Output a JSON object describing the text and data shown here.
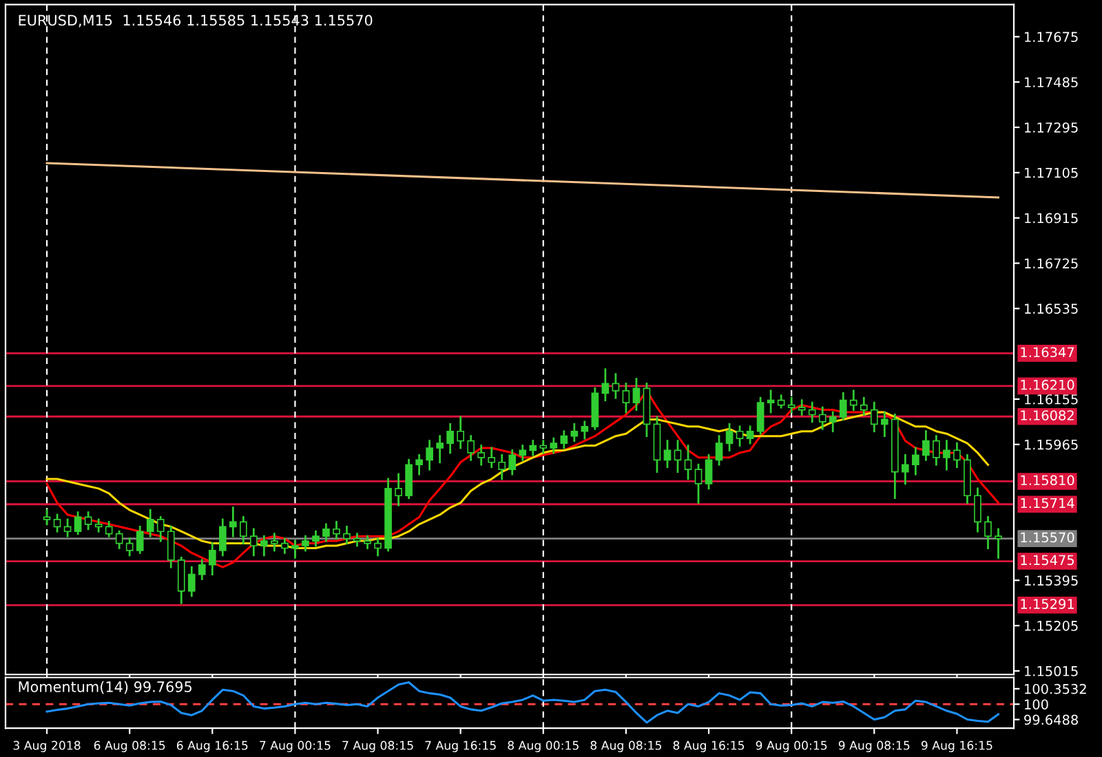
{
  "chart_data": [
    {
      "type": "candlestick",
      "title": "EURUSD,M15  1.15546 1.15585 1.15543 1.15570",
      "categories": [
        "3 Aug 2018",
        null,
        null,
        null,
        null,
        null,
        null,
        null,
        "6 Aug 08:15",
        null,
        null,
        null,
        null,
        null,
        null,
        null,
        "6 Aug 16:15",
        null,
        null,
        null,
        null,
        null,
        null,
        null,
        "7 Aug 00:15",
        null,
        null,
        null,
        null,
        null,
        null,
        null,
        "7 Aug 08:15",
        null,
        null,
        null,
        null,
        null,
        null,
        null,
        "7 Aug 16:15",
        null,
        null,
        null,
        null,
        null,
        null,
        null,
        "8 Aug 00:15",
        null,
        null,
        null,
        null,
        null,
        null,
        null,
        "8 Aug 08:15",
        null,
        null,
        null,
        null,
        null,
        null,
        null,
        "8 Aug 16:15",
        null,
        null,
        null,
        null,
        null,
        null,
        null,
        "9 Aug 00:15",
        null,
        null,
        null,
        null,
        null,
        null,
        null,
        "9 Aug 08:15",
        null,
        null,
        null,
        null,
        null,
        null,
        null,
        "9 Aug 16:15",
        null,
        null,
        null,
        null
      ],
      "color": "#32cd32",
      "ohlc": [
        [
          1.1566,
          1.1569,
          1.1563,
          1.1565
        ],
        [
          1.1565,
          1.1567,
          1.156,
          1.1562
        ],
        [
          1.1562,
          1.1565,
          1.1558,
          1.156
        ],
        [
          1.156,
          1.1568,
          1.1559,
          1.1566
        ],
        [
          1.1566,
          1.1568,
          1.1561,
          1.1563
        ],
        [
          1.1563,
          1.1565,
          1.156,
          1.1562
        ],
        [
          1.1562,
          1.1564,
          1.1558,
          1.1559
        ],
        [
          1.1559,
          1.156,
          1.1553,
          1.1555
        ],
        [
          1.1555,
          1.1557,
          1.155,
          1.1552
        ],
        [
          1.1552,
          1.1562,
          1.1551,
          1.156
        ],
        [
          1.156,
          1.1569,
          1.1558,
          1.1565
        ],
        [
          1.1565,
          1.1566,
          1.1556,
          1.156
        ],
        [
          1.156,
          1.1562,
          1.1545,
          1.1548
        ],
        [
          1.1548,
          1.1549,
          1.153,
          1.1535
        ],
        [
          1.1535,
          1.1545,
          1.1533,
          1.1542
        ],
        [
          1.1542,
          1.1548,
          1.154,
          1.1546
        ],
        [
          1.1546,
          1.1555,
          1.1542,
          1.1552
        ],
        [
          1.1552,
          1.1565,
          1.155,
          1.1562
        ],
        [
          1.1562,
          1.157,
          1.1558,
          1.1564
        ],
        [
          1.1564,
          1.1566,
          1.1555,
          1.1558
        ],
        [
          1.1558,
          1.1561,
          1.155,
          1.1554
        ],
        [
          1.1554,
          1.1558,
          1.155,
          1.1556
        ],
        [
          1.1556,
          1.1559,
          1.1552,
          1.1555
        ],
        [
          1.1555,
          1.1557,
          1.1551,
          1.1553
        ],
        [
          1.1553,
          1.1556,
          1.1549,
          1.1554
        ],
        [
          1.1554,
          1.1558,
          1.1552,
          1.1556
        ],
        [
          1.1556,
          1.156,
          1.1554,
          1.1558
        ],
        [
          1.1558,
          1.1563,
          1.1556,
          1.1561
        ],
        [
          1.1561,
          1.1564,
          1.1557,
          1.1559
        ],
        [
          1.1559,
          1.1562,
          1.1555,
          1.1557
        ],
        [
          1.1557,
          1.1559,
          1.1554,
          1.1556
        ],
        [
          1.1556,
          1.1558,
          1.1553,
          1.1555
        ],
        [
          1.1555,
          1.1557,
          1.155,
          1.1553
        ],
        [
          1.1553,
          1.1582,
          1.1552,
          1.1578
        ],
        [
          1.1578,
          1.1584,
          1.1571,
          1.1575
        ],
        [
          1.1575,
          1.159,
          1.1574,
          1.1588
        ],
        [
          1.1588,
          1.1592,
          1.1584,
          1.159
        ],
        [
          1.159,
          1.1598,
          1.1586,
          1.1595
        ],
        [
          1.1595,
          1.16,
          1.1589,
          1.1597
        ],
        [
          1.1597,
          1.1605,
          1.1593,
          1.1602
        ],
        [
          1.1602,
          1.1608,
          1.1595,
          1.1598
        ],
        [
          1.1598,
          1.16,
          1.159,
          1.1593
        ],
        [
          1.1593,
          1.1596,
          1.1588,
          1.1591
        ],
        [
          1.1591,
          1.1595,
          1.1587,
          1.1589
        ],
        [
          1.1589,
          1.1592,
          1.1582,
          1.1586
        ],
        [
          1.1586,
          1.1594,
          1.1584,
          1.1592
        ],
        [
          1.1592,
          1.1596,
          1.159,
          1.1594
        ],
        [
          1.1594,
          1.1598,
          1.1592,
          1.1596
        ],
        [
          1.1596,
          1.1598,
          1.1593,
          1.1595
        ],
        [
          1.1595,
          1.1599,
          1.1593,
          1.1597
        ],
        [
          1.1597,
          1.1602,
          1.1595,
          1.16
        ],
        [
          1.16,
          1.1605,
          1.1598,
          1.1602
        ],
        [
          1.1602,
          1.1606,
          1.1599,
          1.1604
        ],
        [
          1.1604,
          1.162,
          1.1603,
          1.1618
        ],
        [
          1.1618,
          1.1628,
          1.1615,
          1.1622
        ],
        [
          1.1622,
          1.1626,
          1.1616,
          1.1619
        ],
        [
          1.1619,
          1.1622,
          1.161,
          1.1614
        ],
        [
          1.1614,
          1.1624,
          1.1611,
          1.162
        ],
        [
          1.162,
          1.1622,
          1.16,
          1.1605
        ],
        [
          1.1605,
          1.1608,
          1.1585,
          1.159
        ],
        [
          1.159,
          1.1598,
          1.1587,
          1.1594
        ],
        [
          1.1594,
          1.1598,
          1.1585,
          1.159
        ],
        [
          1.159,
          1.1596,
          1.1582,
          1.1586
        ],
        [
          1.1586,
          1.1588,
          1.1572,
          1.158
        ],
        [
          1.158,
          1.1592,
          1.1578,
          1.159
        ],
        [
          1.159,
          1.16,
          1.1588,
          1.1597
        ],
        [
          1.1597,
          1.1605,
          1.1594,
          1.1602
        ],
        [
          1.1602,
          1.1604,
          1.1596,
          1.1599
        ],
        [
          1.1599,
          1.1604,
          1.1597,
          1.1602
        ],
        [
          1.1602,
          1.1616,
          1.1601,
          1.1614
        ],
        [
          1.1614,
          1.1619,
          1.161,
          1.1615
        ],
        [
          1.1615,
          1.1617,
          1.1612,
          1.1613
        ],
        [
          1.1613,
          1.1616,
          1.161,
          1.1612
        ],
        [
          1.1612,
          1.1615,
          1.1609,
          1.1611
        ],
        [
          1.1611,
          1.1614,
          1.1606,
          1.1609
        ],
        [
          1.1609,
          1.1612,
          1.1603,
          1.1606
        ],
        [
          1.1606,
          1.161,
          1.1602,
          1.1608
        ],
        [
          1.1608,
          1.1618,
          1.1607,
          1.1615
        ],
        [
          1.1615,
          1.1619,
          1.1611,
          1.1613
        ],
        [
          1.1613,
          1.1616,
          1.1609,
          1.1611
        ],
        [
          1.1611,
          1.1614,
          1.1602,
          1.1605
        ],
        [
          1.1605,
          1.161,
          1.16,
          1.1607
        ],
        [
          1.1607,
          1.1609,
          1.1574,
          1.1585
        ],
        [
          1.1585,
          1.1592,
          1.158,
          1.1588
        ],
        [
          1.1588,
          1.1595,
          1.1584,
          1.1592
        ],
        [
          1.1592,
          1.1602,
          1.159,
          1.1598
        ],
        [
          1.1598,
          1.16,
          1.1588,
          1.1591
        ],
        [
          1.1591,
          1.1598,
          1.1586,
          1.1594
        ],
        [
          1.1594,
          1.1597,
          1.1587,
          1.159
        ],
        [
          1.159,
          1.1592,
          1.1572,
          1.1575
        ],
        [
          1.1575,
          1.1578,
          1.156,
          1.1564
        ],
        [
          1.1564,
          1.1566,
          1.1553,
          1.1558
        ],
        [
          1.1558,
          1.1561,
          1.1549,
          1.1557
        ]
      ],
      "series": [
        {
          "type": "line",
          "color": "#ff0000",
          "values": [
            1.158,
            1.1572,
            1.1567,
            1.1566,
            1.1565,
            1.1564,
            1.1563,
            1.1562,
            1.1561,
            1.156,
            1.1559,
            1.1558,
            1.1556,
            1.1554,
            1.1551,
            1.1549,
            1.1547,
            1.1545,
            1.1547,
            1.1551,
            1.1555,
            1.1557,
            1.1558,
            1.1557,
            1.1554,
            1.1555,
            1.1555,
            1.1556,
            1.1556,
            1.1557,
            1.1558,
            1.1558,
            1.1558,
            1.1558,
            1.156,
            1.1563,
            1.1566,
            1.1573,
            1.1578,
            1.1583,
            1.1589,
            1.1592,
            1.1595,
            1.1595,
            1.1594,
            1.1593,
            1.1591,
            1.1591,
            1.1592,
            1.1593,
            1.1594,
            1.1596,
            1.1598,
            1.16,
            1.1603,
            1.1606,
            1.1609,
            1.1613,
            1.1619,
            1.1612,
            1.1606,
            1.16,
            1.1594,
            1.1591,
            1.1591,
            1.1591,
            1.1591,
            1.1593,
            1.1594,
            1.16,
            1.1604,
            1.1606,
            1.1611,
            1.1613,
            1.1612,
            1.1611,
            1.1611,
            1.161,
            1.161,
            1.161,
            1.161,
            1.161,
            1.1606,
            1.1598,
            1.1595,
            1.1594,
            1.1593,
            1.1593,
            1.1593,
            1.1589,
            1.1582,
            1.1577,
            1.1572
          ]
        },
        {
          "type": "line",
          "color": "#ffd700",
          "values": [
            1.1582,
            1.1582,
            1.1581,
            1.158,
            1.1579,
            1.1578,
            1.1576,
            1.1572,
            1.1569,
            1.1567,
            1.1565,
            1.1563,
            1.1562,
            1.156,
            1.1558,
            1.1556,
            1.1555,
            1.1555,
            1.1555,
            1.1555,
            1.1555,
            1.1554,
            1.1554,
            1.1554,
            1.1553,
            1.1553,
            1.1553,
            1.1554,
            1.1554,
            1.1555,
            1.1556,
            1.1556,
            1.1557,
            1.1557,
            1.1558,
            1.156,
            1.1563,
            1.1565,
            1.1567,
            1.157,
            1.1572,
            1.1577,
            1.158,
            1.1582,
            1.1585,
            1.1587,
            1.1589,
            1.1591,
            1.1593,
            1.1594,
            1.1594,
            1.1595,
            1.1596,
            1.1596,
            1.1598,
            1.16,
            1.1601,
            1.1604,
            1.1607,
            1.1607,
            1.1606,
            1.1605,
            1.1604,
            1.1604,
            1.1603,
            1.1602,
            1.1603,
            1.1601,
            1.16,
            1.16,
            1.16,
            1.16,
            1.1601,
            1.1602,
            1.1602,
            1.1604,
            1.1606,
            1.1607,
            1.1608,
            1.1609,
            1.161,
            1.161,
            1.1608,
            1.1606,
            1.1604,
            1.1604,
            1.1602,
            1.1601,
            1.1599,
            1.1597,
            1.1593,
            1.1588,
            null
          ]
        },
        {
          "type": "line",
          "color": "#f4c08a",
          "values": [
            1.17145,
            null,
            null,
            null,
            null,
            null,
            null,
            null,
            null,
            null,
            null,
            null,
            null,
            null,
            null,
            null,
            null,
            null,
            null,
            null,
            null,
            null,
            null,
            null,
            null,
            null,
            null,
            null,
            null,
            null,
            null,
            null,
            null,
            null,
            null,
            null,
            null,
            null,
            null,
            null,
            null,
            null,
            null,
            null,
            null,
            null,
            null,
            null,
            null,
            null,
            null,
            null,
            null,
            null,
            null,
            null,
            null,
            null,
            null,
            null,
            null,
            null,
            null,
            null,
            null,
            null,
            null,
            null,
            null,
            null,
            null,
            null,
            null,
            null,
            null,
            null,
            null,
            null,
            null,
            null,
            null,
            null,
            null,
            null,
            null,
            null,
            null,
            null,
            null,
            null,
            null,
            null,
            1.17001
          ]
        }
      ],
      "ylim": [
        1.15,
        1.1781
      ],
      "yticks": [
        1.17675,
        1.17485,
        1.17295,
        1.17105,
        1.16915,
        1.16725,
        1.16535,
        1.16155,
        1.15965,
        1.15395,
        1.15205,
        1.15015
      ],
      "ref_lines": [
        {
          "axis": "y",
          "value": 1.16347,
          "label": "1.16347",
          "color": "#dc143c"
        },
        {
          "axis": "y",
          "value": 1.1621,
          "label": "1.16210",
          "color": "#dc143c"
        },
        {
          "axis": "y",
          "value": 1.16082,
          "label": "1.16082",
          "color": "#dc143c"
        },
        {
          "axis": "y",
          "value": 1.1581,
          "label": "1.15810",
          "color": "#dc143c"
        },
        {
          "axis": "y",
          "value": 1.15714,
          "label": "1.15714",
          "color": "#dc143c"
        },
        {
          "axis": "y",
          "value": 1.1557,
          "label": "1.15570",
          "color": "#808080"
        },
        {
          "axis": "y",
          "value": 1.15475,
          "label": "1.15475",
          "color": "#dc143c"
        },
        {
          "axis": "y",
          "value": 1.15291,
          "label": "1.15291",
          "color": "#dc143c"
        },
        {
          "axis": "x",
          "value": "3 Aug 2018",
          "color": "#ffffff",
          "line_style": "dashed"
        },
        {
          "axis": "x",
          "value": "7 Aug 00:15",
          "color": "#ffffff",
          "line_style": "dashed"
        },
        {
          "axis": "x",
          "value": "8 Aug 00:15",
          "color": "#ffffff",
          "line_style": "dashed"
        },
        {
          "axis": "x",
          "value": "9 Aug 00:15",
          "color": "#ffffff",
          "line_style": "dashed"
        }
      ],
      "tick_labels": "y",
      "grid": false,
      "legend": false
    },
    {
      "type": "line",
      "title": "Momentum(14) 99.7695",
      "categories": [
        "3 Aug 2018",
        null,
        null,
        null,
        null,
        null,
        null,
        null,
        "6 Aug 08:15",
        null,
        null,
        null,
        null,
        null,
        null,
        null,
        "6 Aug 16:15",
        null,
        null,
        null,
        null,
        null,
        null,
        null,
        "7 Aug 00:15",
        null,
        null,
        null,
        null,
        null,
        null,
        null,
        "7 Aug 08:15",
        null,
        null,
        null,
        null,
        null,
        null,
        null,
        "7 Aug 16:15",
        null,
        null,
        null,
        null,
        null,
        null,
        null,
        "8 Aug 00:15",
        null,
        null,
        null,
        null,
        null,
        null,
        null,
        "8 Aug 08:15",
        null,
        null,
        null,
        null,
        null,
        null,
        null,
        "8 Aug 16:15",
        null,
        null,
        null,
        null,
        null,
        null,
        null,
        "9 Aug 00:15",
        null,
        null,
        null,
        null,
        null,
        null,
        null,
        "9 Aug 08:15",
        null,
        null,
        null,
        null,
        null,
        null,
        null,
        "9 Aug 16:15",
        null,
        null,
        null,
        null
      ],
      "series": [
        {
          "color": "#1e90ff",
          "values": [
            99.83,
            99.87,
            99.9,
            99.95,
            100.0,
            100.02,
            100.03,
            100.0,
            99.97,
            100.02,
            100.05,
            100.06,
            99.98,
            99.8,
            99.75,
            99.85,
            100.1,
            100.33,
            100.3,
            100.2,
            99.95,
            99.9,
            99.92,
            99.95,
            100.0,
            100.03,
            100.0,
            100.03,
            100.01,
            99.98,
            100.0,
            99.95,
            100.15,
            100.3,
            100.45,
            100.5,
            100.3,
            100.25,
            100.22,
            100.15,
            99.95,
            99.88,
            99.85,
            99.93,
            100.02,
            100.05,
            100.1,
            100.2,
            100.08,
            100.1,
            100.08,
            100.05,
            100.1,
            100.3,
            100.33,
            100.28,
            100.05,
            99.8,
            99.58,
            99.75,
            99.85,
            99.8,
            100.0,
            99.95,
            100.05,
            100.25,
            100.2,
            100.1,
            100.27,
            100.25,
            100.0,
            99.97,
            99.98,
            100.02,
            99.95,
            100.05,
            100.03,
            100.06,
            99.95,
            99.8,
            99.65,
            99.7,
            99.85,
            99.88,
            100.08,
            100.05,
            99.95,
            99.85,
            99.78,
            99.65,
            99.62,
            99.6,
            99.77
          ]
        }
      ],
      "ylim": [
        99.45,
        100.61
      ],
      "yticks": [
        100.3532,
        100,
        99.6488
      ],
      "ref_lines": [
        {
          "axis": "y",
          "value": 100,
          "color": "#ff4040",
          "line_style": "dashed"
        },
        {
          "axis": "x",
          "value": "7 Aug 00:15",
          "color": "#ffffff",
          "line_style": "dashed"
        },
        {
          "axis": "x",
          "value": "8 Aug 00:15",
          "color": "#ffffff",
          "line_style": "dashed"
        },
        {
          "axis": "x",
          "value": "9 Aug 00:15",
          "color": "#ffffff",
          "line_style": "dashed"
        }
      ],
      "grid": false,
      "legend": false
    }
  ]
}
